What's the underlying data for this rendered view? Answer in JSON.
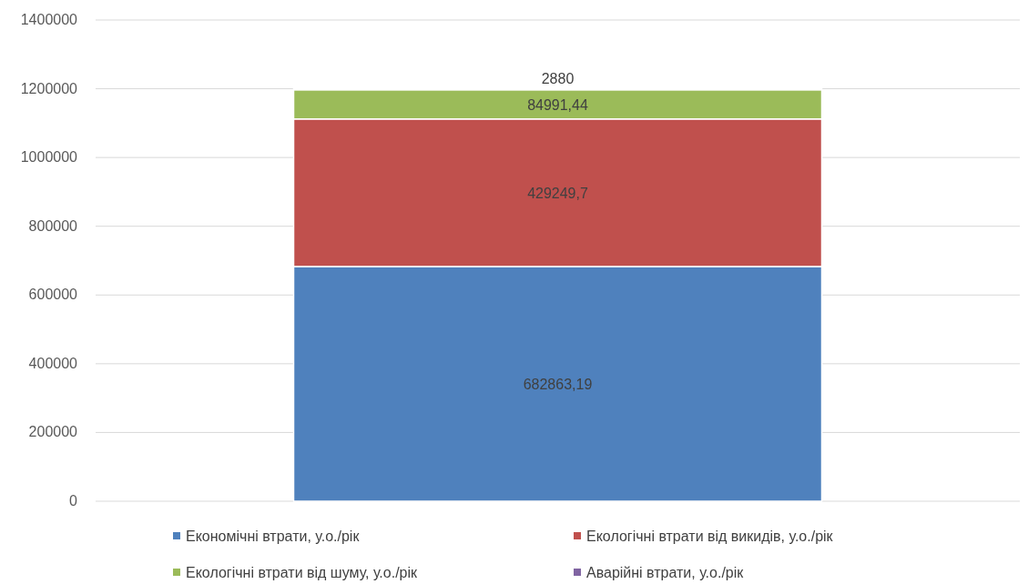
{
  "chart_data": {
    "type": "bar",
    "stacked": true,
    "categories": [
      null
    ],
    "series": [
      {
        "name": "Економічні втрати, у.о./рік",
        "color": "#4f81bd",
        "values": [
          682863.19
        ],
        "value_labels": [
          "682863,19"
        ]
      },
      {
        "name": "Екологічні втрати від викидів, у.о./рік",
        "color": "#c0504d",
        "values": [
          429249.7
        ],
        "value_labels": [
          "429249,7"
        ]
      },
      {
        "name": "Екологічні втрати від шуму, у.о./рік",
        "color": "#9bbb59",
        "values": [
          84991.44
        ],
        "value_labels": [
          "84991,44"
        ]
      },
      {
        "name": "Аварійні втрати, у.о./рік",
        "color": "#8064a2",
        "values": [
          2880
        ],
        "value_labels": [
          "2880"
        ]
      }
    ],
    "ylim": [
      0,
      1400000
    ],
    "yticks": [
      0,
      200000,
      400000,
      600000,
      800000,
      1000000,
      1200000,
      1400000
    ],
    "grid": "y",
    "legend": "bottom"
  }
}
